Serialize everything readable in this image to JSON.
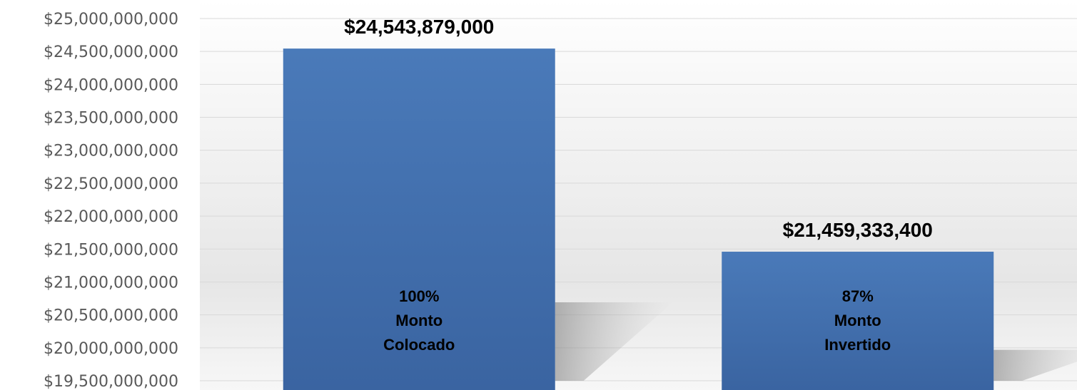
{
  "chart_data": {
    "type": "bar",
    "categories": [
      "Monto Colocado",
      "Monto Invertido"
    ],
    "values": [
      24543879000,
      21459333400
    ],
    "value_labels": [
      "$24,543,879,000",
      "$21,459,333,400"
    ],
    "bar_inner_labels": [
      [
        "100%",
        "Monto",
        "Colocado"
      ],
      [
        "87%",
        "Monto",
        "Invertido"
      ]
    ],
    "ylim": [
      19500000000,
      25000000000
    ],
    "yticks": [
      19500000000,
      20000000000,
      20500000000,
      21000000000,
      21500000000,
      22000000000,
      22500000000,
      23000000000,
      23500000000,
      24000000000,
      24500000000,
      25000000000
    ],
    "ytick_labels": [
      "$19,500,000,000",
      "$20,000,000,000",
      "$20,500,000,000",
      "$21,000,000,000",
      "$21,500,000,000",
      "$22,000,000,000",
      "$22,500,000,000",
      "$23,000,000,000",
      "$23,500,000,000",
      "$24,000,000,000",
      "$24,500,000,000",
      "$25,000,000,000"
    ],
    "grid": true,
    "legend": "none",
    "bar_color": "#4a7ab9",
    "bar_color_dark": "#3a64a1",
    "title": "",
    "xlabel": "",
    "ylabel": ""
  }
}
